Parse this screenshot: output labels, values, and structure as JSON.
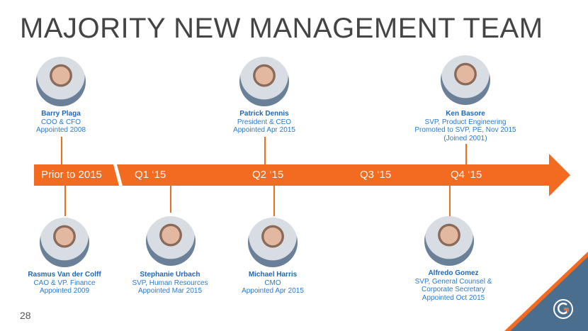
{
  "title": "MAJORITY NEW MANAGEMENT TEAM",
  "page_number": "28",
  "colors": {
    "accent": "#f26b21",
    "name": "#1f68b8",
    "text": "#2a7bd0",
    "corner": "#4a6f8e"
  },
  "timeline": {
    "prior": "Prior to 2015",
    "q1": "Q1 ‘15",
    "q2": "Q2 ‘15",
    "q3": "Q3 ‘15",
    "q4": "Q4 ‘15"
  },
  "top": [
    {
      "name": "Barry Plaga",
      "lines": [
        "COO & CFO",
        "Appointed 2008"
      ]
    },
    {
      "name": "Patrick Dennis",
      "lines": [
        "President & CEO",
        "Appointed Apr 2015"
      ]
    },
    {
      "name": "Ken Basore",
      "lines": [
        "SVP, Product Engineering",
        "Promoted to SVP, PE, Nov 2015",
        "(Joined 2001)"
      ]
    }
  ],
  "bottom": [
    {
      "name": "Rasmus Van der Colff",
      "lines": [
        "CAO & VP. Finance",
        "Appointed 2009"
      ]
    },
    {
      "name": "Stephanie Urbach",
      "lines": [
        "SVP, Human Resources",
        "Appointed Mar 2015"
      ]
    },
    {
      "name": "Michael Harris",
      "lines": [
        "CMO",
        "Appointed Apr 2015"
      ]
    },
    {
      "name": "Alfredo Gomez",
      "lines": [
        "SVP, General Counsel &",
        "Corporate Secretary",
        "Appointed Oct 2015"
      ]
    }
  ]
}
